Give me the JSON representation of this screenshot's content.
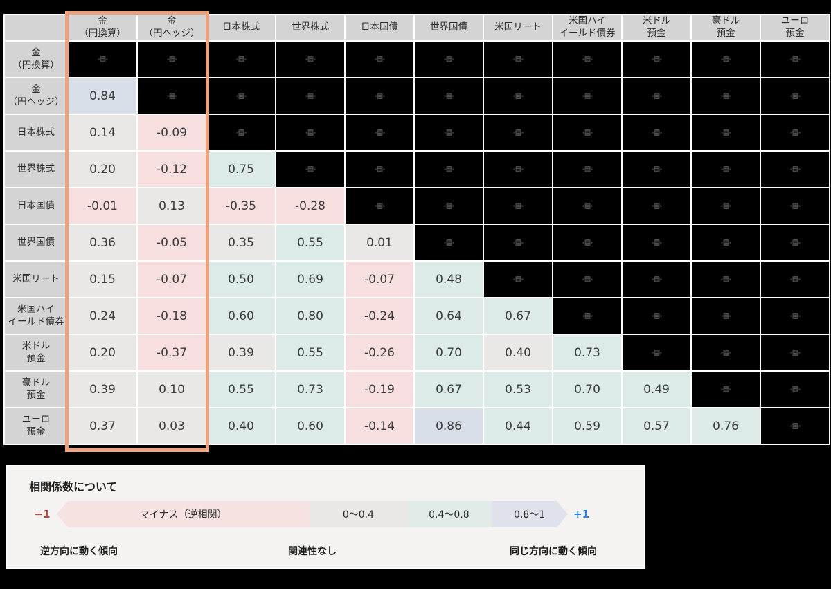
{
  "chart_data": {
    "type": "heatmap",
    "description": "correlation coefficient matrix, lower triangle visible, diagonal and upper triangle blacked out",
    "assets": [
      "金（円換算）",
      "金（円ヘッジ）",
      "日本株式",
      "世界株式",
      "日本国債",
      "世界国債",
      "米国リート",
      "米国ハイイールド債券",
      "米ドル預金",
      "豪ドル預金",
      "ユーロ預金"
    ],
    "col_labels": [
      [
        "金",
        "（円換算）"
      ],
      [
        "金",
        "（円ヘッジ）"
      ],
      [
        "日本株式"
      ],
      [
        "世界株式"
      ],
      [
        "日本国債"
      ],
      [
        "世界国債"
      ],
      [
        "米国リート"
      ],
      [
        "米国ハイ",
        "イールド債券"
      ],
      [
        "米ドル",
        "預金"
      ],
      [
        "豪ドル",
        "預金"
      ],
      [
        "ユーロ",
        "預金"
      ]
    ],
    "rows": [
      {
        "label": [
          "金",
          "（円換算）"
        ],
        "cells": [
          "M",
          "M",
          "M",
          "M",
          "M",
          "M",
          "M",
          "M",
          "M",
          "M",
          "M"
        ]
      },
      {
        "label": [
          "金",
          "（円ヘッジ）"
        ],
        "cells": [
          {
            "v": "0.84",
            "c": "high"
          },
          "M",
          "M",
          "M",
          "M",
          "M",
          "M",
          "M",
          "M",
          "M",
          "M"
        ]
      },
      {
        "label": [
          "日本株式"
        ],
        "cells": [
          {
            "v": "0.14",
            "c": "low"
          },
          {
            "v": "-0.09",
            "c": "neg"
          },
          "M",
          "M",
          "M",
          "M",
          "M",
          "M",
          "M",
          "M",
          "M"
        ]
      },
      {
        "label": [
          "世界株式"
        ],
        "cells": [
          {
            "v": "0.20",
            "c": "low"
          },
          {
            "v": "-0.12",
            "c": "neg"
          },
          {
            "v": "0.75",
            "c": "mid"
          },
          "M",
          "M",
          "M",
          "M",
          "M",
          "M",
          "M",
          "M"
        ]
      },
      {
        "label": [
          "日本国債"
        ],
        "cells": [
          {
            "v": "-0.01",
            "c": "neg"
          },
          {
            "v": "0.13",
            "c": "low"
          },
          {
            "v": "-0.35",
            "c": "neg"
          },
          {
            "v": "-0.28",
            "c": "neg"
          },
          "M",
          "M",
          "M",
          "M",
          "M",
          "M",
          "M"
        ]
      },
      {
        "label": [
          "世界国債"
        ],
        "cells": [
          {
            "v": "0.36",
            "c": "low"
          },
          {
            "v": "-0.05",
            "c": "neg"
          },
          {
            "v": "0.35",
            "c": "low"
          },
          {
            "v": "0.55",
            "c": "mid"
          },
          {
            "v": "0.01",
            "c": "low"
          },
          "M",
          "M",
          "M",
          "M",
          "M",
          "M"
        ]
      },
      {
        "label": [
          "米国リート"
        ],
        "cells": [
          {
            "v": "0.15",
            "c": "low"
          },
          {
            "v": "-0.07",
            "c": "neg"
          },
          {
            "v": "0.50",
            "c": "mid"
          },
          {
            "v": "0.69",
            "c": "mid"
          },
          {
            "v": "-0.07",
            "c": "neg"
          },
          {
            "v": "0.48",
            "c": "mid"
          },
          "M",
          "M",
          "M",
          "M",
          "M"
        ]
      },
      {
        "label": [
          "米国ハイ",
          "イールド債券"
        ],
        "cells": [
          {
            "v": "0.24",
            "c": "low"
          },
          {
            "v": "-0.18",
            "c": "neg"
          },
          {
            "v": "0.60",
            "c": "mid"
          },
          {
            "v": "0.80",
            "c": "mid"
          },
          {
            "v": "-0.24",
            "c": "neg"
          },
          {
            "v": "0.64",
            "c": "mid"
          },
          {
            "v": "0.67",
            "c": "mid"
          },
          "M",
          "M",
          "M",
          "M"
        ]
      },
      {
        "label": [
          "米ドル",
          "預金"
        ],
        "cells": [
          {
            "v": "0.20",
            "c": "low"
          },
          {
            "v": "-0.37",
            "c": "neg"
          },
          {
            "v": "0.39",
            "c": "low"
          },
          {
            "v": "0.55",
            "c": "mid"
          },
          {
            "v": "-0.26",
            "c": "neg"
          },
          {
            "v": "0.70",
            "c": "mid"
          },
          {
            "v": "0.40",
            "c": "low"
          },
          {
            "v": "0.73",
            "c": "mid"
          },
          "M",
          "M",
          "M"
        ]
      },
      {
        "label": [
          "豪ドル",
          "預金"
        ],
        "cells": [
          {
            "v": "0.39",
            "c": "low"
          },
          {
            "v": "0.10",
            "c": "low"
          },
          {
            "v": "0.55",
            "c": "mid"
          },
          {
            "v": "0.73",
            "c": "mid"
          },
          {
            "v": "-0.19",
            "c": "neg"
          },
          {
            "v": "0.67",
            "c": "mid"
          },
          {
            "v": "0.53",
            "c": "mid"
          },
          {
            "v": "0.70",
            "c": "mid"
          },
          {
            "v": "0.49",
            "c": "mid"
          },
          "M",
          "M"
        ]
      },
      {
        "label": [
          "ユーロ",
          "預金"
        ],
        "cells": [
          {
            "v": "0.37",
            "c": "low"
          },
          {
            "v": "0.03",
            "c": "low"
          },
          {
            "v": "0.40",
            "c": "mid"
          },
          {
            "v": "0.60",
            "c": "mid"
          },
          {
            "v": "-0.14",
            "c": "neg"
          },
          {
            "v": "0.86",
            "c": "high"
          },
          {
            "v": "0.44",
            "c": "mid"
          },
          {
            "v": "0.59",
            "c": "mid"
          },
          {
            "v": "0.57",
            "c": "mid"
          },
          {
            "v": "0.76",
            "c": "mid"
          },
          "M"
        ]
      }
    ]
  },
  "highlight": {
    "columns": [
      "金（円換算）",
      "金（円ヘッジ）"
    ],
    "color": "#eda17d"
  },
  "legend": {
    "title": "相関係数について",
    "min_label": "−1",
    "max_label": "+1",
    "segments": [
      {
        "label": "マイナス（逆相関）",
        "color": "#f5e2e1",
        "width_pct": 49.5,
        "tip": "left"
      },
      {
        "label": "0〜0.4",
        "color": "#e9e8e6",
        "width_pct": 19,
        "tip": "none"
      },
      {
        "label": "0.4〜0.8",
        "color": "#e1ebe8",
        "width_pct": 16.5,
        "tip": "none"
      },
      {
        "label": "0.8〜1",
        "color": "#dfe2eb",
        "width_pct": 15,
        "tip": "right"
      }
    ],
    "captions": {
      "left": "逆方向に動く傾向",
      "center": "関連性なし",
      "right": "同じ方向に動く傾向"
    }
  },
  "icons": {
    "masked_cell_icon": "image-placeholder-icon"
  },
  "colors": {
    "header_bg": "#d4d4d4",
    "neg": "#f6dfde",
    "low": "#e9e8e7",
    "mid": "#dcebe7",
    "high": "#d9dfe9",
    "masked_bg": "#000000",
    "grid_line": "#ffffff",
    "highlight_border": "#eda17d",
    "value_text": "#3c3c3c",
    "header_text": "#2b2b2b",
    "legend_bg": "#f4f3f2",
    "minus": "#b5403c",
    "plus": "#2b7de1"
  }
}
